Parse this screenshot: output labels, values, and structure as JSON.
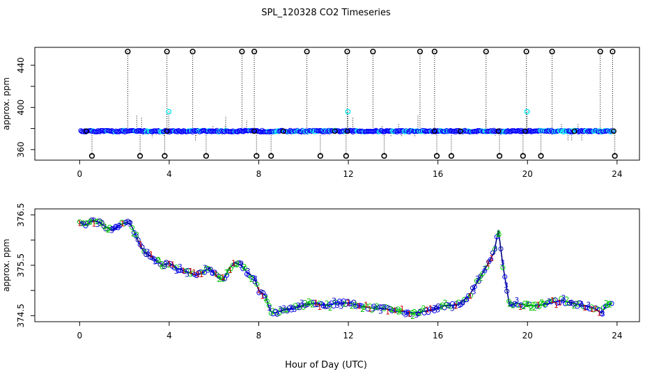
{
  "page_title": "SPL_120328  CO2 Timeseries",
  "shared_xlabel": "Hour of Day (UTC)",
  "colors": {
    "outlier": "#000000",
    "blue_circle": "#0000ff",
    "cyan_circle": "#00e5ee",
    "green_circle": "#00cc00",
    "dark_blue_circle": "#0000aa",
    "label_1": "#cc0000",
    "label_2": "#00bb00",
    "label_3": "#0000cc"
  },
  "chart_data": [
    {
      "type": "scatter",
      "title": "SPL_120328  CO2 Timeseries",
      "xlabel": "",
      "ylabel": "approx. ppm",
      "xlim": [
        -2,
        25
      ],
      "ylim": [
        350,
        457
      ],
      "x_ticks": [
        0,
        4,
        8,
        12,
        16,
        20,
        24
      ],
      "y_ticks": [
        360,
        400,
        440
      ],
      "y_minor_ticks": [
        380,
        420
      ],
      "baseline_ppm": 377.5,
      "outliers_high": {
        "y": 453,
        "x": [
          2.15,
          3.9,
          5.05,
          7.25,
          7.8,
          10.15,
          11.95,
          13.1,
          15.2,
          15.85,
          18.15,
          19.95,
          21.1,
          23.25,
          23.8
        ]
      },
      "outliers_low": {
        "y": 354,
        "x": [
          0.55,
          2.7,
          3.8,
          5.65,
          7.9,
          8.55,
          10.75,
          11.9,
          13.6,
          15.95,
          16.6,
          18.75,
          19.8,
          20.6,
          23.9
        ]
      },
      "cyan_spikes": [
        {
          "x": 3.98,
          "y": 396
        },
        {
          "x": 11.98,
          "y": 396
        },
        {
          "x": 19.98,
          "y": 396
        }
      ],
      "series": [
        {
          "name": "blue",
          "x_start": 0.05,
          "x_end": 23.9,
          "y": 377.5
        }
      ]
    },
    {
      "type": "scatter",
      "title": "",
      "xlabel": "Hour of Day (UTC)",
      "ylabel": "approx. ppm",
      "xlim": [
        -2,
        25
      ],
      "ylim": [
        374.38,
        376.62
      ],
      "x_ticks": [
        0,
        4,
        8,
        12,
        16,
        20,
        24
      ],
      "y_ticks": [
        "374.5",
        "375.5",
        "376.5"
      ],
      "y_minor_ticks": [
        375.0,
        376.0
      ],
      "point_labels": [
        "1",
        "2",
        "3"
      ],
      "trace": {
        "x": [
          0.0,
          0.3,
          0.6,
          0.9,
          1.2,
          1.5,
          1.8,
          2.1,
          2.3,
          2.5,
          2.7,
          2.9,
          3.1,
          3.4,
          3.7,
          4.0,
          4.3,
          4.6,
          4.9,
          5.2,
          5.5,
          5.8,
          6.1,
          6.4,
          6.7,
          6.95,
          7.2,
          7.5,
          7.8,
          8.0,
          8.3,
          8.5,
          8.7,
          9.0,
          9.5,
          10.0,
          10.5,
          11.0,
          11.5,
          12.0,
          12.5,
          13.0,
          13.5,
          14.0,
          14.5,
          15.0,
          15.5,
          16.0,
          16.3,
          16.7,
          17.0,
          17.4,
          17.8,
          18.2,
          18.5,
          18.7,
          18.9,
          19.2,
          19.5,
          20.0,
          20.5,
          21.0,
          21.5,
          22.0,
          22.5,
          23.0,
          23.3,
          23.5,
          23.8
        ],
        "y": [
          376.35,
          376.3,
          376.4,
          376.35,
          376.25,
          376.2,
          376.3,
          376.35,
          376.3,
          376.1,
          375.9,
          375.75,
          375.7,
          375.6,
          375.5,
          375.55,
          375.45,
          375.4,
          375.35,
          375.3,
          375.35,
          375.45,
          375.3,
          375.2,
          375.45,
          375.55,
          375.5,
          375.35,
          375.25,
          375.0,
          374.9,
          374.6,
          374.55,
          374.6,
          374.65,
          374.7,
          374.75,
          374.7,
          374.75,
          374.75,
          374.7,
          374.65,
          374.65,
          374.6,
          374.58,
          374.55,
          374.6,
          374.65,
          374.7,
          374.7,
          374.75,
          374.9,
          375.2,
          375.5,
          375.75,
          376.2,
          375.5,
          374.7,
          374.75,
          374.7,
          374.7,
          374.75,
          374.8,
          374.75,
          374.7,
          374.65,
          374.55,
          374.7,
          374.75
        ]
      }
    }
  ]
}
